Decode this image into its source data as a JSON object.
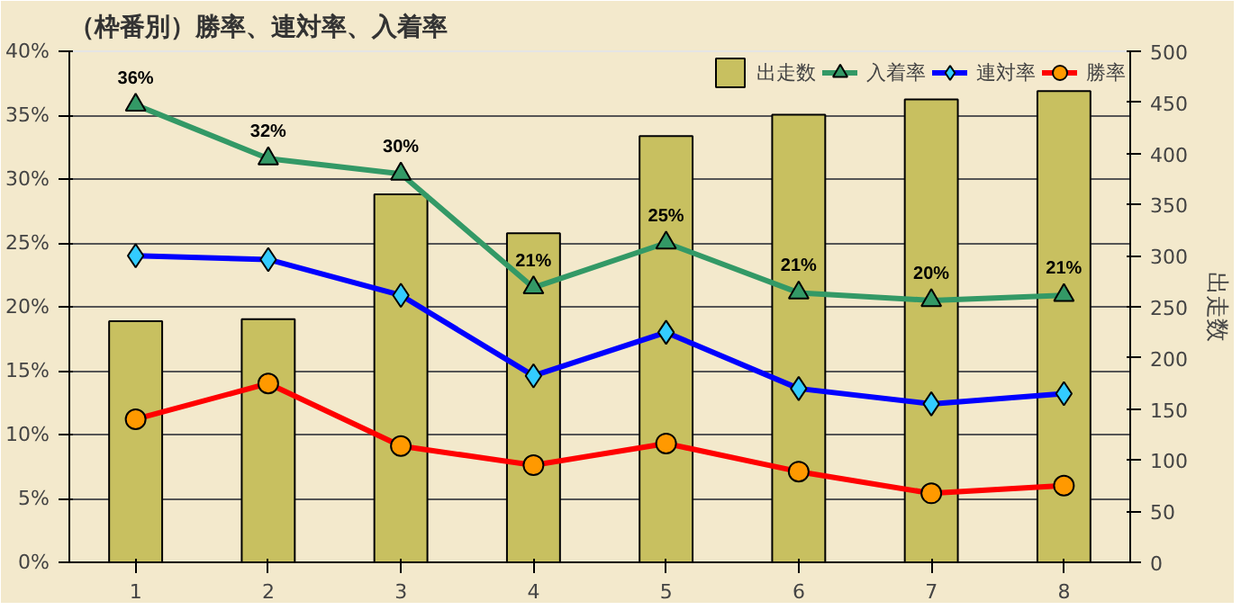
{
  "chart_data": {
    "type": "line",
    "title": "（枠番別）勝率、連対率、入着率",
    "y2label": "出走数",
    "categories": [
      "1",
      "2",
      "3",
      "4",
      "5",
      "6",
      "7",
      "8"
    ],
    "ylim": [
      0,
      40
    ],
    "yticks": [
      {
        "value": 0,
        "label": "0%"
      },
      {
        "value": 5,
        "label": "5%"
      },
      {
        "value": 10,
        "label": "10%"
      },
      {
        "value": 15,
        "label": "15%"
      },
      {
        "value": 20,
        "label": "20%"
      },
      {
        "value": 25,
        "label": "25%"
      },
      {
        "value": 30,
        "label": "30%"
      },
      {
        "value": 35,
        "label": "35%"
      },
      {
        "value": 40,
        "label": "40%"
      }
    ],
    "y2lim": [
      0,
      500
    ],
    "y2ticks": [
      0,
      50,
      100,
      150,
      200,
      250,
      300,
      350,
      400,
      450,
      500
    ],
    "grid": "y",
    "legend": "top right",
    "series": [
      {
        "name": "出走数",
        "type": "bar",
        "axis": "y2",
        "color": "#c8c060",
        "values": [
          236,
          238,
          360,
          322,
          417,
          438,
          453,
          461
        ]
      },
      {
        "name": "入着率",
        "marker": "triangle",
        "color": "#339966",
        "values": [
          35.8,
          31.6,
          30.4,
          21.5,
          25.0,
          21.1,
          20.5,
          20.9
        ],
        "value_labels": [
          "36%",
          "32%",
          "30%",
          "21%",
          "25%",
          "21%",
          "20%",
          "21%"
        ]
      },
      {
        "name": "連対率",
        "marker": "diamond",
        "color": "#0000ff",
        "values": [
          24.0,
          23.7,
          20.9,
          14.6,
          18.0,
          13.6,
          12.4,
          13.2
        ]
      },
      {
        "name": "勝率",
        "marker": "circle",
        "color": "#ff0000",
        "values": [
          11.2,
          14.0,
          9.1,
          7.6,
          9.3,
          7.1,
          5.4,
          6.0
        ]
      }
    ]
  }
}
